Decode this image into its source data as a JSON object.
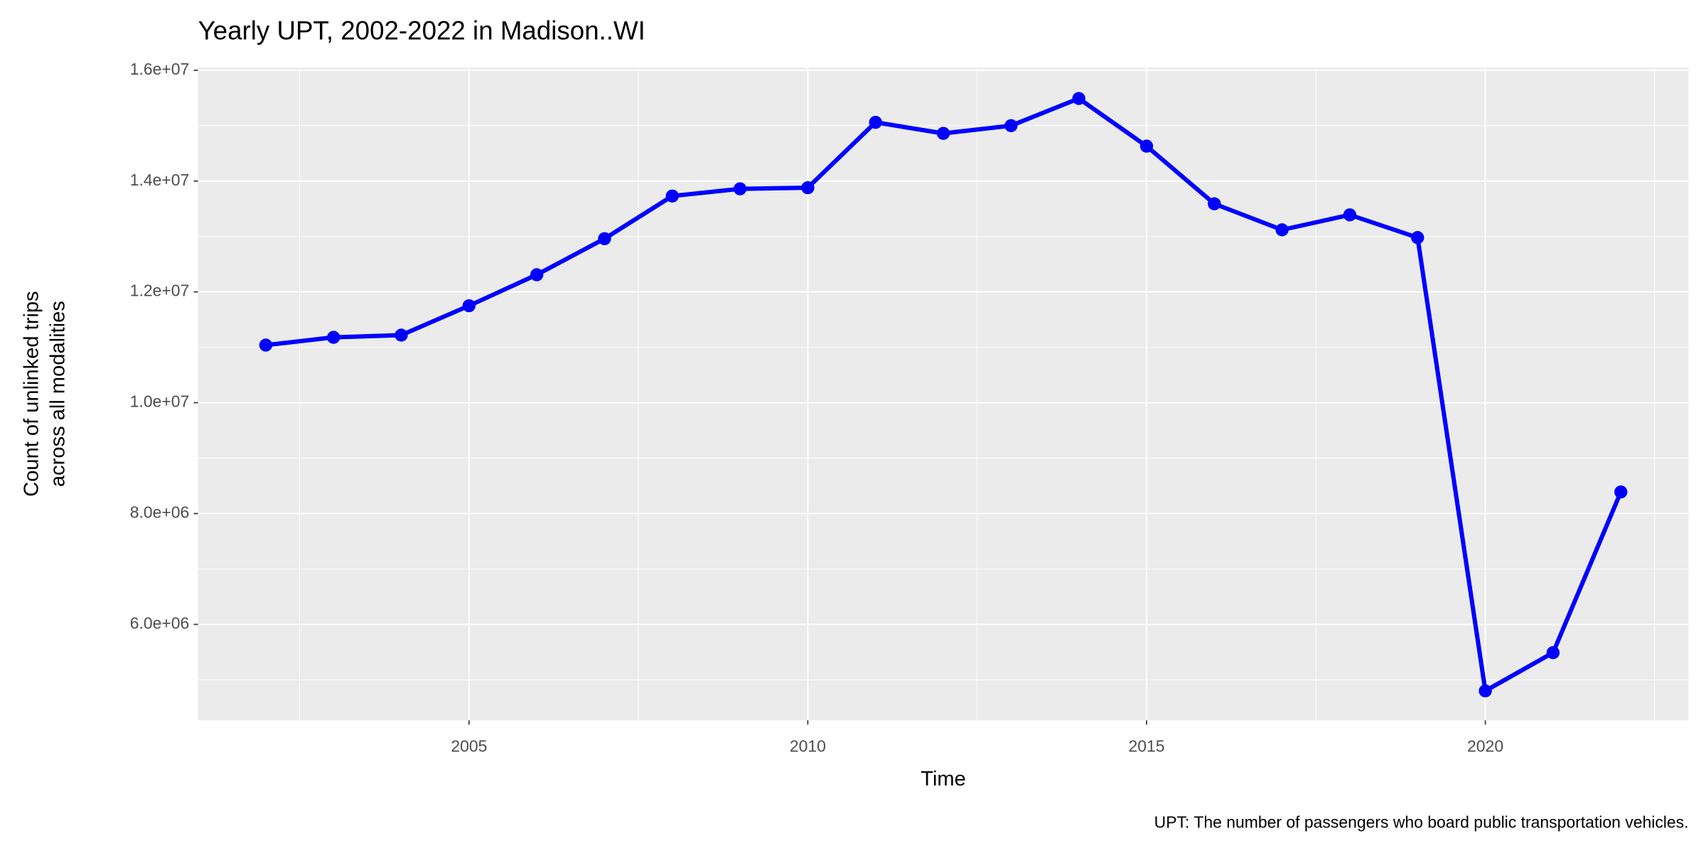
{
  "chart_data": {
    "type": "line",
    "title": "Yearly UPT, 2002-2022 in Madison..WI",
    "x_label": "Time",
    "y_label": [
      "Count of unlinked trips",
      "across all modalities"
    ],
    "caption": "UPT: The number of passengers who board public transportation vehicles.",
    "x": [
      2002,
      2003,
      2004,
      2005,
      2006,
      2007,
      2008,
      2009,
      2010,
      2011,
      2012,
      2013,
      2014,
      2015,
      2016,
      2017,
      2018,
      2019,
      2020,
      2021,
      2022
    ],
    "series": [
      {
        "color": "#0000ff",
        "values": [
          11040000,
          11180000,
          11220000,
          11750000,
          12310000,
          12960000,
          13730000,
          13860000,
          13880000,
          15060000,
          14860000,
          15000000,
          15490000,
          14630000,
          13590000,
          13120000,
          13390000,
          12980000,
          4800000,
          5490000,
          8390000
        ]
      }
    ],
    "xlim": [
      2001,
      2023
    ],
    "ylim": [
      4270000,
      16050000
    ],
    "xticks": [
      2005,
      2010,
      2015,
      2020
    ],
    "yticks": [
      {
        "value": 6000000,
        "label": "6.0e+06"
      },
      {
        "value": 8000000,
        "label": "8.0e+06"
      },
      {
        "value": 10000000,
        "label": "1.0e+07"
      },
      {
        "value": 12000000,
        "label": "1.2e+07"
      },
      {
        "value": 14000000,
        "label": "1.4e+07"
      },
      {
        "value": 16000000,
        "label": "1.6e+07"
      }
    ],
    "grid": true
  }
}
